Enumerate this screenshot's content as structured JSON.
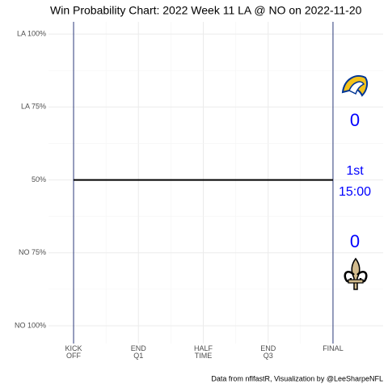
{
  "chart_data": {
    "type": "line",
    "title": "Win Probability Chart: 2022 Week 11 LA @ NO on 2022-11-20",
    "caption": "Data from nflfastR, Visualization by @LeeSharpeNFL",
    "x": [
      0,
      60
    ],
    "values": [
      50,
      50
    ],
    "color": "#000000",
    "xlim": [
      -5.8,
      71.6
    ],
    "ylim": [
      -6.1,
      104.2
    ],
    "xticks": [
      {
        "value": 0,
        "label": "KICK\nOFF"
      },
      {
        "value": 15,
        "label": "END\nQ1"
      },
      {
        "value": 30,
        "label": "HALF\nTIME"
      },
      {
        "value": 45,
        "label": "END\nQ3"
      },
      {
        "value": 60,
        "label": "FINAL"
      }
    ],
    "yticks": [
      {
        "value": 0,
        "label": "NO 100%"
      },
      {
        "value": 25,
        "label": "NO 75%"
      },
      {
        "value": 50,
        "label": "50%"
      },
      {
        "value": 75,
        "label": "LA 75%"
      },
      {
        "value": 100,
        "label": "LA 100%"
      }
    ],
    "grid": true,
    "boundary_color": "#2b3a7a",
    "annotations": {
      "away_score": "0",
      "home_score": "0",
      "quarter": "1st",
      "clock": "15:00",
      "color": "#0000ff"
    }
  }
}
